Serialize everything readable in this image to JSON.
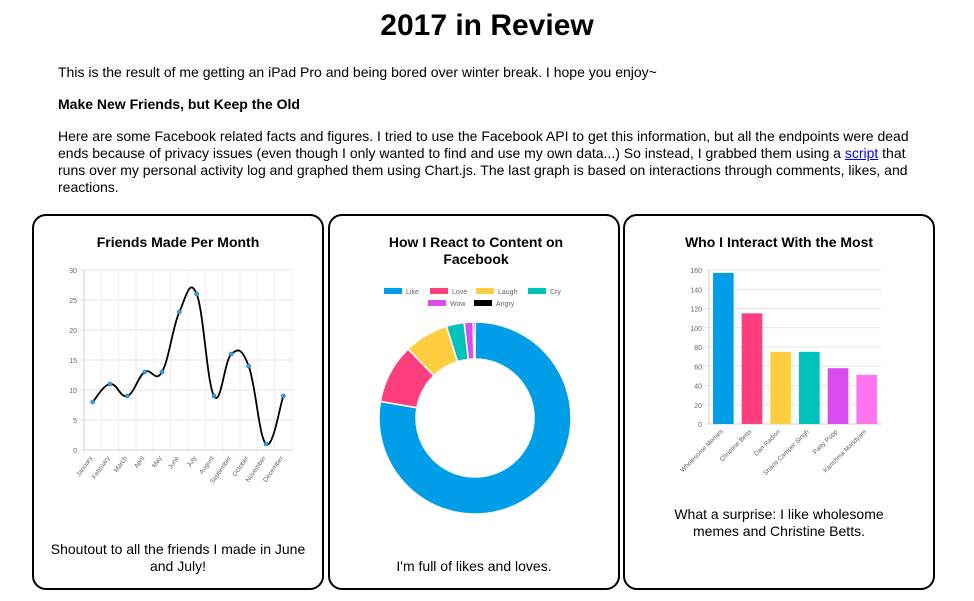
{
  "page": {
    "title": "2017 in Review",
    "intro": "This is the result of me getting an iPad Pro and being bored over winter break. I hope you enjoy~",
    "section_heading": "Make New Friends, but Keep the Old",
    "body_before_link": "Here are some Facebook related facts and figures. I tried to use the Facebook API to get this information, but all the endpoints were dead ends because of privacy issues (even though I only wanted to find and use my own data...) So instead, I grabbed them using a ",
    "link_text": "script",
    "body_after_link": " that runs over my personal activity log and graphed them using Chart.js. The last graph is based on interactions through comments, likes, and reactions."
  },
  "cards": [
    {
      "title": "Friends Made Per Month",
      "caption": "Shoutout to all the friends I made in June and July!"
    },
    {
      "title": "How I React to Content on Facebook",
      "caption": "I'm full of likes and loves."
    },
    {
      "title": "Who I Interact With the Most",
      "caption": "What a surprise: I like wholesome memes and Christine Betts."
    }
  ],
  "chart_data": [
    {
      "type": "line",
      "title": "Friends Made Per Month",
      "categories": [
        "January",
        "February",
        "March",
        "April",
        "May",
        "June",
        "July",
        "August",
        "September",
        "October",
        "November",
        "December"
      ],
      "values": [
        8,
        11,
        9,
        13,
        13,
        23,
        26,
        9,
        16,
        14,
        1,
        9
      ],
      "ylim": [
        0,
        30
      ],
      "yticks": [
        0,
        5,
        10,
        15,
        20,
        25,
        30
      ],
      "grid": true,
      "line_color": "#000000",
      "point_color": "#36a2eb"
    },
    {
      "type": "pie",
      "title": "How I React to Content on Facebook",
      "donut": true,
      "legend_position": "top",
      "labels": [
        "Like",
        "Love",
        "Laugh",
        "Cry",
        "Wow",
        "Angry"
      ],
      "values": [
        78,
        10,
        7.5,
        3,
        1.5,
        0.3
      ],
      "colors": [
        "#009ee8",
        "#ff3d7f",
        "#ffcd40",
        "#00c2bc",
        "#d94cf0",
        "#000000"
      ]
    },
    {
      "type": "bar",
      "title": "Who I Interact With the Most",
      "categories": [
        "Wholesome Memes",
        "Christine Betts",
        "Dan Radion",
        "Shanti Camper Singh",
        "Patty Popp",
        "Karishma Mandyam"
      ],
      "values": [
        157,
        115,
        75,
        75,
        58,
        51
      ],
      "ylim": [
        0,
        160
      ],
      "yticks": [
        0,
        20,
        40,
        60,
        80,
        100,
        120,
        140,
        160
      ],
      "grid": true,
      "colors": [
        "#009ee8",
        "#ff3d7f",
        "#ffcd40",
        "#00c2bc",
        "#d94cf0",
        "#ff75f0"
      ]
    }
  ]
}
